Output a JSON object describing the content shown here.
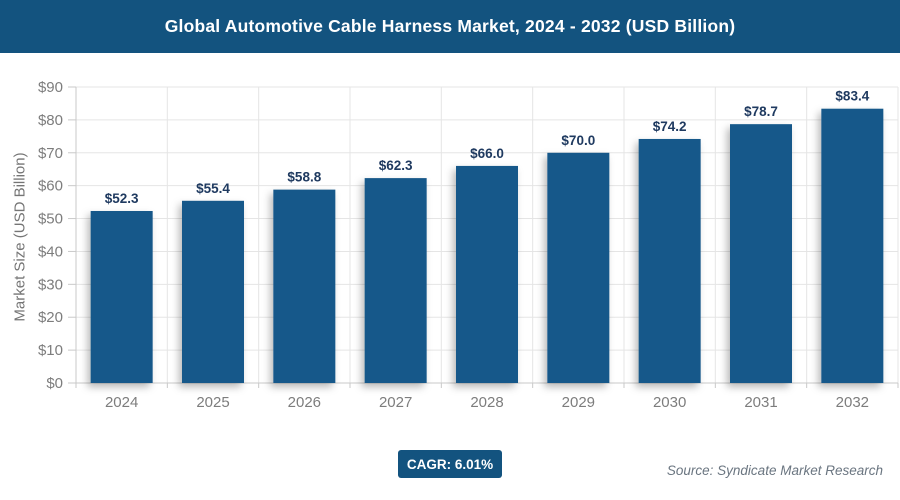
{
  "header": {
    "title": "Global Automotive Cable Harness Market, 2024 - 2032 (USD Billion)"
  },
  "chart_data": {
    "type": "bar",
    "title": "Global Automotive Cable Harness Market, 2024 - 2032 (USD Billion)",
    "categories": [
      "2024",
      "2025",
      "2026",
      "2027",
      "2028",
      "2029",
      "2030",
      "2031",
      "2032"
    ],
    "values": [
      52.3,
      55.4,
      58.8,
      62.3,
      66.0,
      70.0,
      74.2,
      78.7,
      83.4
    ],
    "value_labels": [
      "$52.3",
      "$55.4",
      "$58.8",
      "$62.3",
      "$66.0",
      "$70.0",
      "$74.2",
      "$78.7",
      "$83.4"
    ],
    "xlabel": "",
    "ylabel": "Market Size (USD Billion)",
    "ylim": [
      0,
      90
    ],
    "ytick_step": 10,
    "ytick_labels": [
      "$0",
      "$10",
      "$20",
      "$30",
      "$40",
      "$50",
      "$60",
      "$70",
      "$80",
      "$90"
    ],
    "grid": true,
    "legend": "none",
    "bar_color": "#17598A",
    "value_label_color": "#1F3A60",
    "tick_label_color": "#7D7D7D",
    "gridline_color": "#E5E5E5",
    "axis_color": "#C9C9C9"
  },
  "footer": {
    "cagr_label": "CAGR: 6.01%",
    "source": "Source: Syndicate Market Research"
  },
  "colors": {
    "brand": "#13537F",
    "background": "#FFFFFF"
  }
}
